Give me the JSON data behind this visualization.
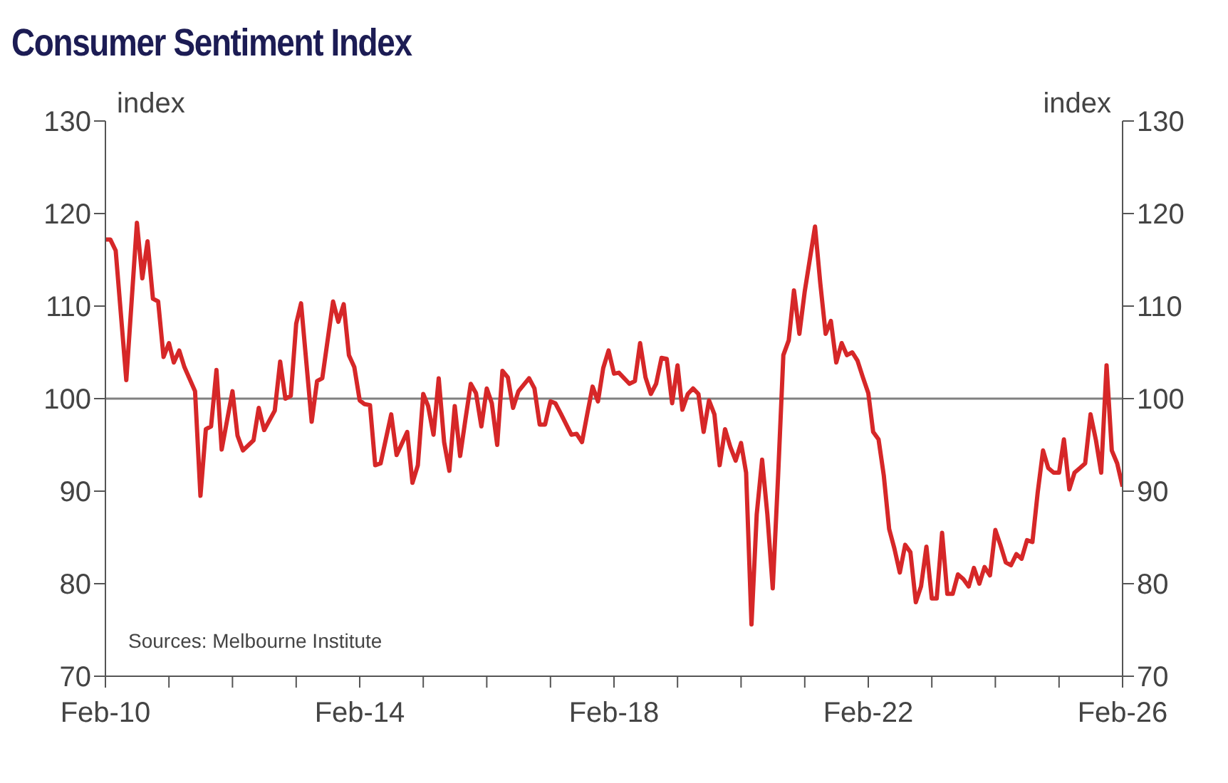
{
  "chart_data": {
    "type": "line",
    "title": "Consumer Sentiment Index",
    "ylabel": "index",
    "y2label": "index",
    "annotations": [
      "Sources: Melbourne Institute"
    ],
    "x": [
      "2010-02",
      "2010-03",
      "2010-04",
      "2010-06",
      "2010-08",
      "2010-09",
      "2010-10",
      "2010-11",
      "2010-12",
      "2011-01",
      "2011-02",
      "2011-03",
      "2011-04",
      "2011-05",
      "2011-07",
      "2011-08",
      "2011-09",
      "2011-10",
      "2011-11",
      "2011-12",
      "2012-02",
      "2012-03",
      "2012-04",
      "2012-06",
      "2012-07",
      "2012-08",
      "2012-10",
      "2012-11",
      "2012-12",
      "2013-01",
      "2013-02",
      "2013-03",
      "2013-05",
      "2013-06",
      "2013-07",
      "2013-09",
      "2013-10",
      "2013-11",
      "2013-12",
      "2014-01",
      "2014-02",
      "2014-03",
      "2014-04",
      "2014-05",
      "2014-06",
      "2014-08",
      "2014-09",
      "2014-11",
      "2014-12",
      "2015-01",
      "2015-02",
      "2015-03",
      "2015-04",
      "2015-05",
      "2015-06",
      "2015-07",
      "2015-08",
      "2015-09",
      "2015-10",
      "2015-11",
      "2015-12",
      "2016-01",
      "2016-02",
      "2016-03",
      "2016-04",
      "2016-05",
      "2016-06",
      "2016-07",
      "2016-08",
      "2016-10",
      "2016-11",
      "2016-12",
      "2017-01",
      "2017-02",
      "2017-03",
      "2017-04",
      "2017-06",
      "2017-07",
      "2017-08",
      "2017-09",
      "2017-10",
      "2017-11",
      "2017-12",
      "2018-01",
      "2018-02",
      "2018-03",
      "2018-05",
      "2018-06",
      "2018-07",
      "2018-08",
      "2018-09",
      "2018-10",
      "2018-11",
      "2018-12",
      "2019-01",
      "2019-02",
      "2019-03",
      "2019-04",
      "2019-05",
      "2019-06",
      "2019-07",
      "2019-08",
      "2019-09",
      "2019-10",
      "2019-11",
      "2019-12",
      "2020-01",
      "2020-02",
      "2020-03",
      "2020-04",
      "2020-05",
      "2020-06",
      "2020-07",
      "2020-08",
      "2020-09",
      "2020-10",
      "2020-11",
      "2020-12",
      "2021-01",
      "2021-02",
      "2021-04",
      "2021-05",
      "2021-06",
      "2021-07",
      "2021-08",
      "2021-09",
      "2021-10",
      "2021-11",
      "2021-12",
      "2022-01",
      "2022-02",
      "2022-03",
      "2022-04",
      "2022-05",
      "2022-06",
      "2022-07",
      "2022-08",
      "2022-09",
      "2022-10",
      "2022-11",
      "2022-12",
      "2023-01",
      "2023-02",
      "2023-03",
      "2023-04",
      "2023-05",
      "2023-06",
      "2023-07",
      "2023-08",
      "2023-09",
      "2023-10",
      "2023-11",
      "2023-12",
      "2024-01",
      "2024-02",
      "2024-03",
      "2024-04",
      "2024-05",
      "2024-06",
      "2024-07",
      "2024-08",
      "2024-09",
      "2024-10",
      "2024-11",
      "2024-12",
      "2025-01",
      "2025-02",
      "2025-03",
      "2025-04",
      "2025-05",
      "2025-06",
      "2025-07",
      "2025-08",
      "2025-09",
      "2025-10",
      "2025-11",
      "2025-12",
      "2026-01",
      "2026-02"
    ],
    "series": [
      {
        "color": "#d62728",
        "values": [
          117.2,
          117.2,
          116,
          102,
          119,
          113,
          117,
          110.8,
          110.5,
          104.5,
          106,
          103.9,
          105.2,
          103.4,
          100.8,
          89.5,
          96.7,
          97,
          103.1,
          94.5,
          100.8,
          96,
          94.4,
          95.5,
          99,
          96.6,
          98.7,
          104,
          100,
          100.3,
          108.1,
          110.3,
          97.5,
          101.9,
          102.2,
          110.5,
          108.3,
          110.2,
          104.7,
          103.4,
          99.8,
          99.4,
          99.3,
          92.8,
          93,
          98.3,
          93.9,
          96.4,
          90.9,
          92.8,
          100.5,
          99.2,
          96.1,
          102.2,
          95.3,
          92.2,
          99.2,
          93.8,
          97.7,
          101.6,
          100.6,
          97,
          101.1,
          99.5,
          95,
          103,
          102.3,
          99,
          100.8,
          102.2,
          101.1,
          97.2,
          97.2,
          99.7,
          99.5,
          98.4,
          96.1,
          96.2,
          95.3,
          98.4,
          101.3,
          99.7,
          103.3,
          105.2,
          102.7,
          102.8,
          101.6,
          101.9,
          106,
          102.3,
          100.5,
          101.6,
          104.4,
          104.3,
          99.5,
          103.6,
          98.8,
          100.5,
          101.1,
          100.5,
          96.4,
          99.8,
          98.3,
          92.8,
          96.7,
          94.8,
          93.3,
          95.2,
          92,
          75.6,
          87.5,
          93.4,
          87.5,
          79.5,
          91.7,
          104.7,
          106.3,
          111.7,
          107,
          111.6,
          118.6,
          112.5,
          107,
          108.4,
          103.9,
          106,
          104.7,
          105,
          104.1,
          102.3,
          100.6,
          96.4,
          95.6,
          91.7,
          85.9,
          83.8,
          81.2,
          84.2,
          83.4,
          78,
          79.7,
          84,
          78.4,
          78.4,
          85.5,
          78.9,
          78.9,
          81,
          80.5,
          79.7,
          81.7,
          80,
          81.8,
          80.9,
          85.8,
          84.2,
          82.3,
          82,
          83.2,
          82.7,
          84.7,
          84.5,
          89.8,
          94.4,
          92.5,
          92,
          92,
          95.6,
          90.2,
          92,
          92.5,
          93,
          98.3,
          95.5,
          92,
          103.6,
          94.4,
          93,
          90.5
        ]
      }
    ],
    "xlim": [
      "2010-02",
      "2026-02"
    ],
    "xticks": [
      {
        "value": "2010-02",
        "label": "Feb-10"
      },
      {
        "value": "2011-02",
        "label": null
      },
      {
        "value": "2012-02",
        "label": null
      },
      {
        "value": "2013-02",
        "label": null
      },
      {
        "value": "2014-02",
        "label": "Feb-14"
      },
      {
        "value": "2015-02",
        "label": null
      },
      {
        "value": "2016-02",
        "label": null
      },
      {
        "value": "2017-02",
        "label": null
      },
      {
        "value": "2018-02",
        "label": "Feb-18"
      },
      {
        "value": "2019-02",
        "label": null
      },
      {
        "value": "2020-02",
        "label": null
      },
      {
        "value": "2021-02",
        "label": null
      },
      {
        "value": "2022-02",
        "label": "Feb-22"
      },
      {
        "value": "2023-02",
        "label": null
      },
      {
        "value": "2024-02",
        "label": null
      },
      {
        "value": "2025-02",
        "label": null
      },
      {
        "value": "2026-02",
        "label": "Feb-26"
      }
    ],
    "ylim": [
      70,
      130
    ],
    "yticks": [
      70,
      80,
      90,
      100,
      110,
      120,
      130
    ],
    "y2lim": [
      70,
      130
    ],
    "y2ticks": [
      70,
      80,
      90,
      100,
      110,
      120,
      130
    ],
    "ref_lines": [
      {
        "axis": "y",
        "value": 100,
        "color": "#808080"
      }
    ],
    "marker": "none",
    "line_style": "solid"
  }
}
